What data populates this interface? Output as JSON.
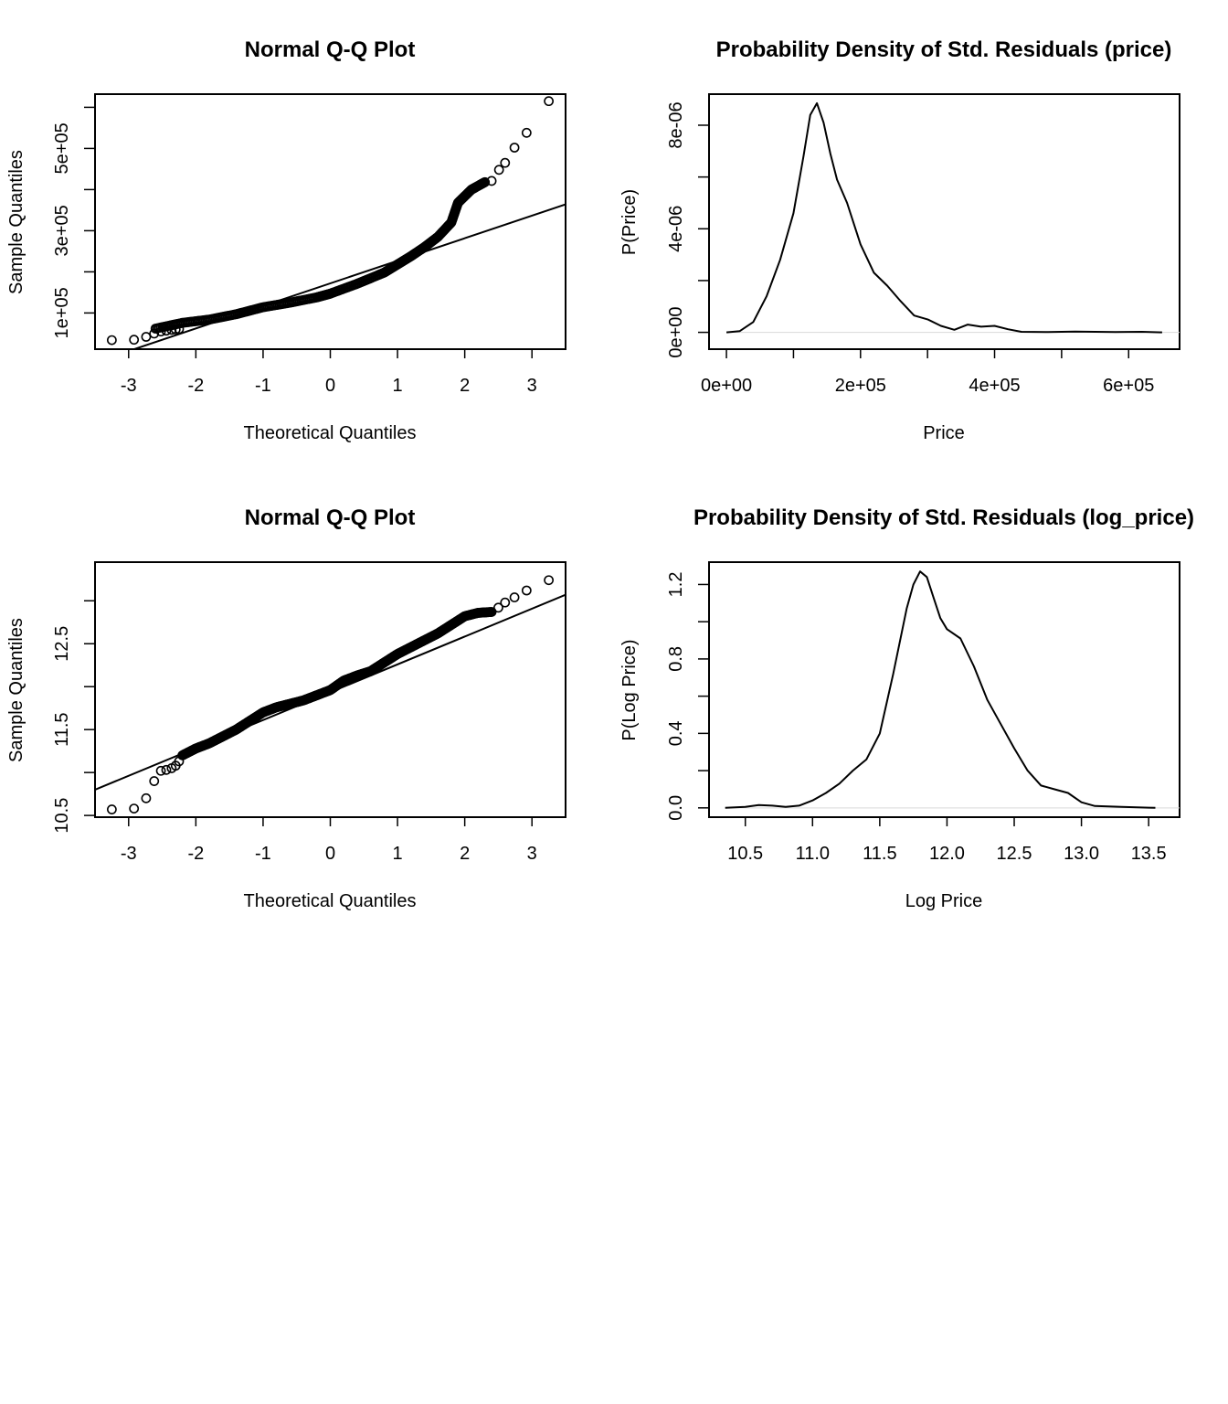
{
  "chart_data": [
    {
      "type": "scatter",
      "title": "Normal Q-Q Plot",
      "xlabel": "Theoretical Quantiles",
      "ylabel": "Sample Quantiles",
      "xlim": [
        -3.5,
        3.5
      ],
      "ylim": [
        12000,
        632000
      ],
      "xticks": [
        -3,
        -2,
        -1,
        0,
        1,
        2,
        3
      ],
      "xtick_labels": [
        "-3",
        "-2",
        "-1",
        "0",
        "1",
        "2",
        "3"
      ],
      "yticks": [
        100000,
        200000,
        300000,
        400000,
        500000,
        600000
      ],
      "ytick_labels": [
        "1e+05",
        "",
        "3e+05",
        "",
        "5e+05",
        ""
      ],
      "ref_line": {
        "x": [
          -3.5,
          3.5
        ],
        "y": [
          -20000,
          364000
        ]
      },
      "quantile_curve": {
        "x": [
          -2.6,
          -2.2,
          -1.8,
          -1.4,
          -1.0,
          -0.6,
          -0.2,
          0.0,
          0.4,
          0.8,
          1.0,
          1.2,
          1.4,
          1.6,
          1.8,
          1.9,
          2.1,
          2.3
        ],
        "y": [
          62000,
          76000,
          84000,
          97000,
          114000,
          125000,
          138000,
          147000,
          171000,
          198000,
          218000,
          238000,
          260000,
          285000,
          320000,
          368000,
          400000,
          418000
        ]
      },
      "extreme_points": {
        "x": [
          -3.25,
          -2.92,
          -2.74,
          -2.62,
          -2.52,
          -2.44,
          -2.36,
          -2.3,
          -2.25,
          2.4,
          2.51,
          2.6,
          2.74,
          2.92,
          3.25
        ],
        "y": [
          34000,
          35000,
          42000,
          50000,
          55000,
          57000,
          59000,
          60000,
          61000,
          421000,
          448000,
          465000,
          502000,
          538000,
          615000
        ]
      }
    },
    {
      "type": "line",
      "title": "Probability Density of Std. Residuals (price)",
      "xlabel": "Price",
      "ylabel": "P(Price)",
      "xlim": [
        -26000,
        676000
      ],
      "ylim": [
        -6.5e-07,
        9.2e-06
      ],
      "xticks": [
        0,
        100000,
        200000,
        300000,
        400000,
        500000,
        600000
      ],
      "xtick_labels": [
        "0e+00",
        "",
        "2e+05",
        "",
        "4e+05",
        "",
        "6e+05"
      ],
      "yticks": [
        0,
        2e-06,
        4e-06,
        6e-06,
        8e-06
      ],
      "ytick_labels": [
        "0e+00",
        "",
        "4e-06",
        "",
        "8e-06"
      ],
      "x": [
        0,
        20000,
        40000,
        60000,
        80000,
        100000,
        115000,
        125000,
        135000,
        145000,
        155000,
        165000,
        180000,
        200000,
        220000,
        240000,
        260000,
        280000,
        300000,
        320000,
        340000,
        360000,
        380000,
        400000,
        420000,
        440000,
        480000,
        520000,
        580000,
        620000,
        650000
      ],
      "y": [
        0,
        5e-08,
        4e-07,
        1.4e-06,
        2.8e-06,
        4.6e-06,
        6.8e-06,
        8.4e-06,
        8.85e-06,
        8.1e-06,
        6.9e-06,
        5.9e-06,
        5e-06,
        3.4e-06,
        2.3e-06,
        1.8e-06,
        1.2e-06,
        6.5e-07,
        5e-07,
        2.5e-07,
        1e-07,
        3e-07,
        2.2e-07,
        2.5e-07,
        1.2e-07,
        2e-08,
        1e-08,
        3e-08,
        1e-08,
        2e-08,
        0
      ]
    },
    {
      "type": "scatter",
      "title": "Normal Q-Q Plot",
      "xlabel": "Theoretical Quantiles",
      "ylabel": "Sample Quantiles",
      "xlim": [
        -3.5,
        3.5
      ],
      "ylim": [
        10.48,
        13.45
      ],
      "xticks": [
        -3,
        -2,
        -1,
        0,
        1,
        2,
        3
      ],
      "xtick_labels": [
        "-3",
        "-2",
        "-1",
        "0",
        "1",
        "2",
        "3"
      ],
      "yticks": [
        10.5,
        11.0,
        11.5,
        12.0,
        12.5,
        13.0
      ],
      "ytick_labels": [
        "10.5",
        "",
        "11.5",
        "",
        "12.5",
        ""
      ],
      "ref_line": {
        "x": [
          -3.5,
          3.5
        ],
        "y": [
          10.8,
          13.07
        ]
      },
      "quantile_curve": {
        "x": [
          -2.2,
          -2.0,
          -1.8,
          -1.6,
          -1.4,
          -1.2,
          -1.0,
          -0.8,
          -0.6,
          -0.4,
          -0.2,
          0.0,
          0.2,
          0.4,
          0.6,
          0.8,
          1.0,
          1.2,
          1.4,
          1.6,
          1.8,
          2.0,
          2.2,
          2.4
        ],
        "y": [
          11.2,
          11.28,
          11.34,
          11.42,
          11.5,
          11.6,
          11.7,
          11.76,
          11.8,
          11.84,
          11.9,
          11.96,
          12.07,
          12.13,
          12.18,
          12.28,
          12.38,
          12.46,
          12.54,
          12.62,
          12.72,
          12.82,
          12.86,
          12.87
        ]
      },
      "extreme_points": {
        "x": [
          -3.25,
          -2.92,
          -2.74,
          -2.62,
          -2.52,
          -2.44,
          -2.36,
          -2.3,
          -2.25,
          2.5,
          2.6,
          2.74,
          2.92,
          3.25
        ],
        "y": [
          10.57,
          10.58,
          10.7,
          10.9,
          11.02,
          11.03,
          11.05,
          11.08,
          11.13,
          12.92,
          12.98,
          13.04,
          13.12,
          13.24
        ]
      }
    },
    {
      "type": "line",
      "title": "Probability Density of Std. Residuals (log_price)",
      "xlabel": "Log Price",
      "ylabel": "P(Log Price)",
      "xlim": [
        10.23,
        13.73
      ],
      "ylim": [
        -0.05,
        1.32
      ],
      "xticks": [
        10.5,
        11.0,
        11.5,
        12.0,
        12.5,
        13.0,
        13.5
      ],
      "xtick_labels": [
        "10.5",
        "11.0",
        "11.5",
        "12.0",
        "12.5",
        "13.0",
        "13.5"
      ],
      "yticks": [
        0.0,
        0.2,
        0.4,
        0.6,
        0.8,
        1.0,
        1.2
      ],
      "ytick_labels": [
        "0.0",
        "",
        "0.4",
        "",
        "0.8",
        "",
        "1.2"
      ],
      "x": [
        10.35,
        10.5,
        10.6,
        10.7,
        10.8,
        10.9,
        11.0,
        11.1,
        11.2,
        11.3,
        11.4,
        11.5,
        11.6,
        11.7,
        11.75,
        11.8,
        11.85,
        11.9,
        11.95,
        12.0,
        12.1,
        12.2,
        12.3,
        12.4,
        12.5,
        12.6,
        12.7,
        12.8,
        12.9,
        13.0,
        13.1,
        13.3,
        13.5,
        13.55
      ],
      "y": [
        0.0,
        0.005,
        0.015,
        0.012,
        0.005,
        0.012,
        0.04,
        0.08,
        0.13,
        0.2,
        0.26,
        0.4,
        0.72,
        1.07,
        1.2,
        1.27,
        1.24,
        1.13,
        1.02,
        0.96,
        0.91,
        0.76,
        0.58,
        0.45,
        0.32,
        0.2,
        0.12,
        0.1,
        0.08,
        0.03,
        0.01,
        0.005,
        0.001,
        0.0
      ]
    }
  ]
}
